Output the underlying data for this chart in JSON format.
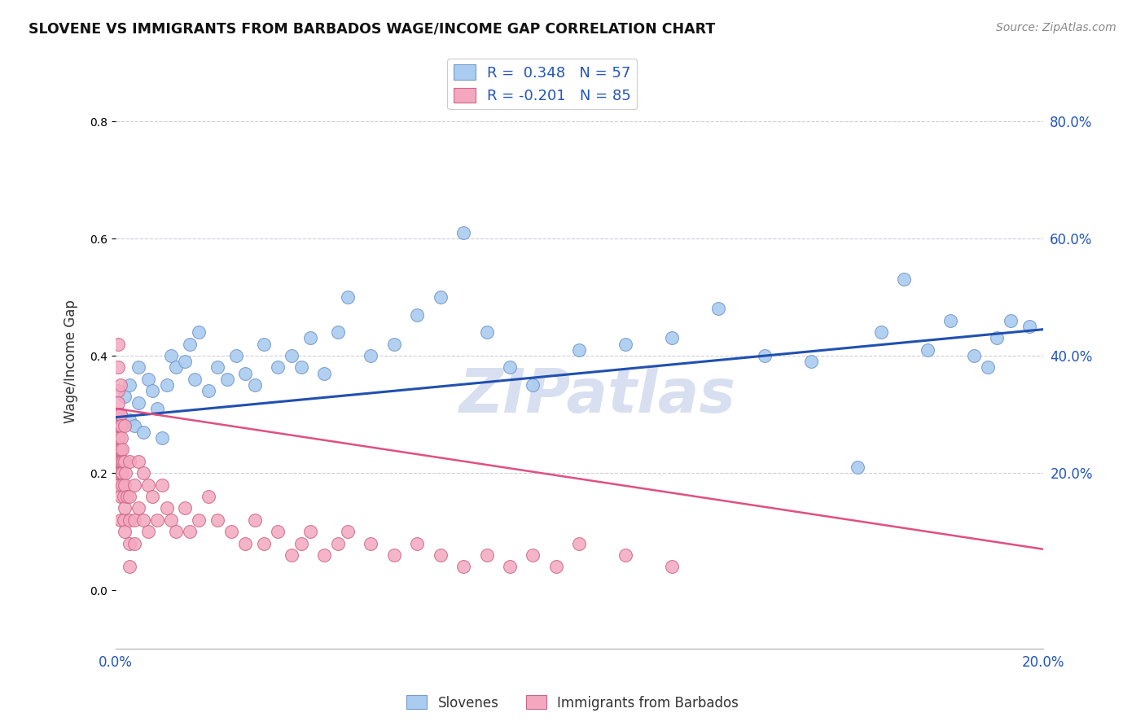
{
  "title": "SLOVENE VS IMMIGRANTS FROM BARBADOS WAGE/INCOME GAP CORRELATION CHART",
  "source": "Source: ZipAtlas.com",
  "ylabel": "Wage/Income Gap",
  "legend_label_r1": "R =  0.348   N = 57",
  "legend_label_r2": "R = -0.201   N = 85",
  "legend_label_slovenes": "Slovenes",
  "legend_label_barbados": "Immigrants from Barbados",
  "blue_scatter_color": "#aaccf0",
  "pink_scatter_color": "#f4a8c0",
  "blue_line_color": "#2050b0",
  "pink_line_color": "#e05080",
  "background_color": "#ffffff",
  "grid_color": "#ccccdd",
  "watermark_text": "ZIPatlas",
  "watermark_color": "#d8dff0",
  "xmin": 0.0,
  "xmax": 0.2,
  "ymin": -0.1,
  "ymax": 0.88,
  "blue_intercept": 0.295,
  "blue_slope": 0.75,
  "pink_intercept": 0.31,
  "pink_slope": -1.2,
  "blue_points_x": [
    0.001,
    0.002,
    0.003,
    0.003,
    0.004,
    0.005,
    0.005,
    0.006,
    0.007,
    0.008,
    0.009,
    0.01,
    0.011,
    0.012,
    0.013,
    0.015,
    0.016,
    0.017,
    0.018,
    0.02,
    0.022,
    0.024,
    0.026,
    0.028,
    0.03,
    0.032,
    0.035,
    0.038,
    0.04,
    0.042,
    0.045,
    0.048,
    0.05,
    0.055,
    0.06,
    0.065,
    0.07,
    0.075,
    0.08,
    0.085,
    0.09,
    0.1,
    0.11,
    0.12,
    0.13,
    0.14,
    0.15,
    0.16,
    0.165,
    0.17,
    0.175,
    0.18,
    0.185,
    0.188,
    0.19,
    0.193,
    0.197
  ],
  "blue_points_y": [
    0.3,
    0.33,
    0.29,
    0.35,
    0.28,
    0.32,
    0.38,
    0.27,
    0.36,
    0.34,
    0.31,
    0.26,
    0.35,
    0.4,
    0.38,
    0.39,
    0.42,
    0.36,
    0.44,
    0.34,
    0.38,
    0.36,
    0.4,
    0.37,
    0.35,
    0.42,
    0.38,
    0.4,
    0.38,
    0.43,
    0.37,
    0.44,
    0.5,
    0.4,
    0.42,
    0.47,
    0.5,
    0.61,
    0.44,
    0.38,
    0.35,
    0.41,
    0.42,
    0.43,
    0.48,
    0.4,
    0.39,
    0.21,
    0.44,
    0.53,
    0.41,
    0.46,
    0.4,
    0.38,
    0.43,
    0.46,
    0.45
  ],
  "pink_points_x": [
    0.0003,
    0.0004,
    0.0005,
    0.0005,
    0.0005,
    0.0005,
    0.0006,
    0.0006,
    0.0007,
    0.0007,
    0.0008,
    0.0008,
    0.0008,
    0.0009,
    0.0009,
    0.001,
    0.001,
    0.001,
    0.001,
    0.001,
    0.001,
    0.0012,
    0.0012,
    0.0013,
    0.0014,
    0.0015,
    0.0015,
    0.0016,
    0.0017,
    0.0018,
    0.002,
    0.002,
    0.002,
    0.002,
    0.002,
    0.0022,
    0.0025,
    0.003,
    0.003,
    0.003,
    0.003,
    0.003,
    0.004,
    0.004,
    0.004,
    0.005,
    0.005,
    0.006,
    0.006,
    0.007,
    0.007,
    0.008,
    0.009,
    0.01,
    0.011,
    0.012,
    0.013,
    0.015,
    0.016,
    0.018,
    0.02,
    0.022,
    0.025,
    0.028,
    0.03,
    0.032,
    0.035,
    0.038,
    0.04,
    0.042,
    0.045,
    0.048,
    0.05,
    0.055,
    0.06,
    0.065,
    0.07,
    0.075,
    0.08,
    0.085,
    0.09,
    0.095,
    0.1,
    0.11,
    0.12
  ],
  "pink_points_y": [
    0.25,
    0.3,
    0.42,
    0.38,
    0.34,
    0.28,
    0.32,
    0.22,
    0.26,
    0.18,
    0.3,
    0.24,
    0.2,
    0.28,
    0.22,
    0.35,
    0.3,
    0.24,
    0.2,
    0.16,
    0.12,
    0.28,
    0.22,
    0.26,
    0.2,
    0.24,
    0.18,
    0.22,
    0.16,
    0.12,
    0.28,
    0.22,
    0.18,
    0.14,
    0.1,
    0.2,
    0.16,
    0.22,
    0.16,
    0.12,
    0.08,
    0.04,
    0.18,
    0.12,
    0.08,
    0.22,
    0.14,
    0.2,
    0.12,
    0.18,
    0.1,
    0.16,
    0.12,
    0.18,
    0.14,
    0.12,
    0.1,
    0.14,
    0.1,
    0.12,
    0.16,
    0.12,
    0.1,
    0.08,
    0.12,
    0.08,
    0.1,
    0.06,
    0.08,
    0.1,
    0.06,
    0.08,
    0.1,
    0.08,
    0.06,
    0.08,
    0.06,
    0.04,
    0.06,
    0.04,
    0.06,
    0.04,
    0.08,
    0.06,
    0.04
  ]
}
